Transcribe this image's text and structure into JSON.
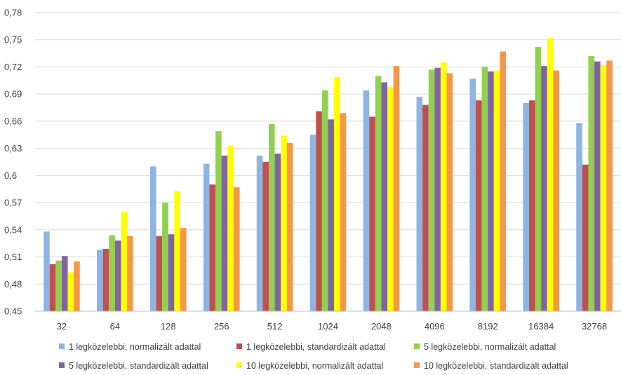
{
  "chart_data": {
    "type": "bar",
    "title": "",
    "xlabel": "",
    "ylabel": "",
    "ylim": [
      0.45,
      0.78
    ],
    "yticks": [
      "0,45",
      "0,48",
      "0,51",
      "0,54",
      "0,57",
      "0,6",
      "0,63",
      "0,66",
      "0,69",
      "0,72",
      "0,75",
      "0,78"
    ],
    "categories": [
      "32",
      "64",
      "128",
      "256",
      "512",
      "1024",
      "2048",
      "4096",
      "8192",
      "16384",
      "32768"
    ],
    "grid": true,
    "legend_position": "bottom",
    "series": [
      {
        "name": "1 legközelebbi, normalizált adattal",
        "color": "#8EB4E3",
        "values": [
          0.538,
          0.518,
          0.61,
          0.613,
          0.622,
          0.645,
          0.694,
          0.687,
          0.707,
          0.68,
          0.658
        ]
      },
      {
        "name": "1 legközelebbi, standardizált adattal",
        "color": "#C0504D",
        "values": [
          0.502,
          0.519,
          0.533,
          0.59,
          0.615,
          0.671,
          0.665,
          0.678,
          0.683,
          0.683,
          0.612
        ]
      },
      {
        "name": "5 legközelebbi, normalizált adattal",
        "color": "#92D050",
        "values": [
          0.506,
          0.534,
          0.57,
          0.649,
          0.657,
          0.694,
          0.71,
          0.717,
          0.72,
          0.742,
          0.732
        ]
      },
      {
        "name": "5 legközelebbi, standardizált adattal",
        "color": "#8064A2",
        "values": [
          0.511,
          0.528,
          0.535,
          0.622,
          0.624,
          0.662,
          0.703,
          0.719,
          0.715,
          0.721,
          0.726
        ]
      },
      {
        "name": "10 legközelebbi, normalizált adattal",
        "color": "#FFFF00",
        "values": [
          0.493,
          0.56,
          0.583,
          0.633,
          0.644,
          0.709,
          0.698,
          0.725,
          0.716,
          0.752,
          0.722
        ]
      },
      {
        "name": "10 legközelebbi, standardizált adattal",
        "color": "#F79646",
        "values": [
          0.505,
          0.533,
          0.542,
          0.587,
          0.636,
          0.669,
          0.721,
          0.713,
          0.737,
          0.716,
          0.727
        ]
      }
    ]
  }
}
